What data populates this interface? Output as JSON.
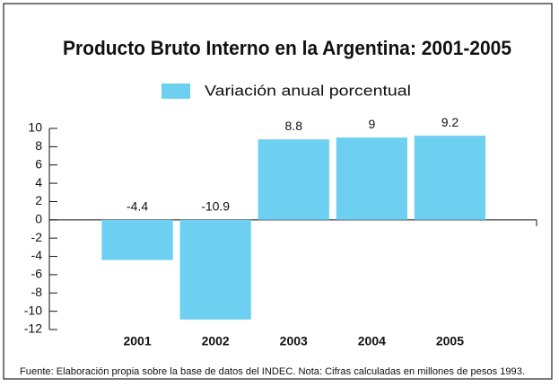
{
  "chart_data": {
    "type": "bar",
    "title": "Producto Bruto Interno en la Argentina: 2001-2005",
    "categories": [
      "2001",
      "2002",
      "2003",
      "2004",
      "2005"
    ],
    "series": [
      {
        "name": "Variación anual porcentual",
        "color": "#6dd0f0",
        "values": [
          -4.4,
          -10.9,
          8.8,
          9,
          9.2
        ]
      }
    ],
    "ylim": [
      -12,
      10
    ],
    "yticks": [
      -12,
      -10,
      -8,
      -6,
      -4,
      -2,
      0,
      2,
      4,
      6,
      8,
      10
    ],
    "legend": "top",
    "source": "Fuente: Elaboración propia sobre la base de datos del INDEC. Nota: Cifras calculadas en millones de pesos 1993."
  }
}
